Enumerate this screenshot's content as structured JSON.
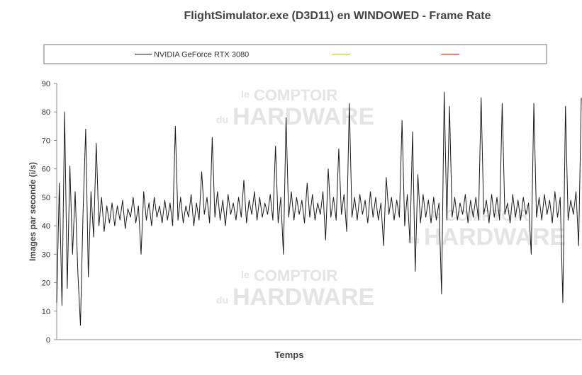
{
  "chart_data": {
    "type": "line",
    "title": "FlightSimulator.exe (D3D11) en WINDOWED - Frame Rate",
    "x_label": "Temps",
    "y_label": "Images par seconde (i/s)",
    "watermark": [
      "le",
      "COMPTOIR",
      "du",
      "HARDWARE"
    ],
    "ylim": [
      0,
      90
    ],
    "yticks": [
      0,
      10,
      20,
      30,
      40,
      50,
      60,
      70,
      80,
      90
    ],
    "grid": false,
    "series": [
      {
        "name": "NVIDIA GeForce RTX 3080",
        "color": "#1a1a1a",
        "values": [
          13,
          55,
          12,
          80,
          18,
          61,
          30,
          52,
          24,
          5,
          45,
          74,
          22,
          52,
          36,
          69,
          40,
          50,
          38,
          47,
          41,
          48,
          40,
          47,
          42,
          49,
          39,
          46,
          43,
          50,
          41,
          47,
          30,
          52,
          42,
          48,
          40,
          50,
          43,
          47,
          41,
          49,
          42,
          48,
          40,
          75,
          42,
          50,
          41,
          47,
          43,
          51,
          40,
          48,
          42,
          59,
          44,
          50,
          41,
          71,
          43,
          52,
          42,
          49,
          40,
          51,
          44,
          48,
          42,
          50,
          43,
          56,
          41,
          49,
          44,
          52,
          42,
          50,
          43,
          48,
          44,
          51,
          42,
          68,
          41,
          50,
          30,
          78,
          43,
          52,
          42,
          50,
          44,
          49,
          41,
          55,
          43,
          51,
          42,
          48,
          44,
          52,
          35,
          60,
          43,
          50,
          42,
          67,
          44,
          51,
          38,
          83,
          43,
          50,
          42,
          51,
          44,
          49,
          41,
          52,
          43,
          50,
          42,
          48,
          33,
          57,
          44,
          50,
          42,
          49,
          43,
          77,
          40,
          51,
          34,
          73,
          24,
          58,
          41,
          51,
          43,
          49,
          41,
          50,
          42,
          48,
          16,
          87,
          42,
          82,
          43,
          50,
          42,
          48,
          44,
          51,
          41,
          49,
          43,
          50,
          42,
          85,
          44,
          49,
          41,
          51,
          43,
          50,
          42,
          83,
          44,
          48,
          41,
          51,
          43,
          49,
          42,
          50,
          44,
          48,
          30,
          83,
          43,
          50,
          42,
          51,
          44,
          49,
          41,
          52,
          43,
          50,
          13,
          82,
          42,
          49,
          44,
          52,
          33,
          85
        ]
      }
    ]
  }
}
